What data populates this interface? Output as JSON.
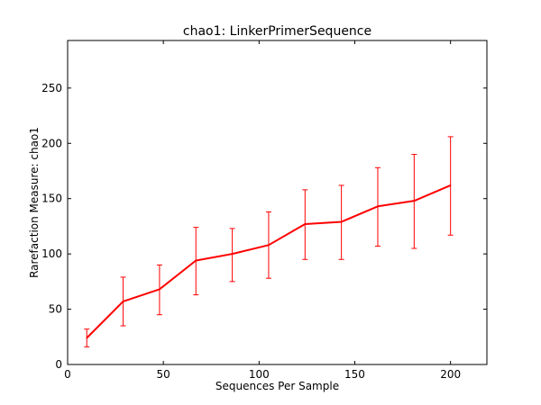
{
  "chart_data": {
    "type": "line",
    "title": "chao1: LinkerPrimerSequence",
    "xlabel": "Sequences Per Sample",
    "ylabel": "Rarefaction Measure: chao1",
    "xlim": [
      0,
      219
    ],
    "ylim": [
      0,
      293
    ],
    "xticks": [
      0,
      50,
      100,
      150,
      200
    ],
    "yticks": [
      0,
      50,
      100,
      150,
      200,
      250
    ],
    "grid": false,
    "series": [
      {
        "color": "#ff0000",
        "x": [
          10,
          29,
          48,
          67,
          86,
          105,
          124,
          143,
          162,
          181,
          200
        ],
        "y": [
          24,
          57,
          68,
          94,
          100,
          108,
          127,
          129,
          143,
          148,
          162
        ],
        "err_low": [
          16,
          35,
          45,
          63,
          75,
          78,
          95,
          95,
          107,
          105,
          117
        ],
        "err_high": [
          32,
          79,
          90,
          124,
          123,
          138,
          158,
          162,
          178,
          190,
          206
        ]
      }
    ]
  }
}
